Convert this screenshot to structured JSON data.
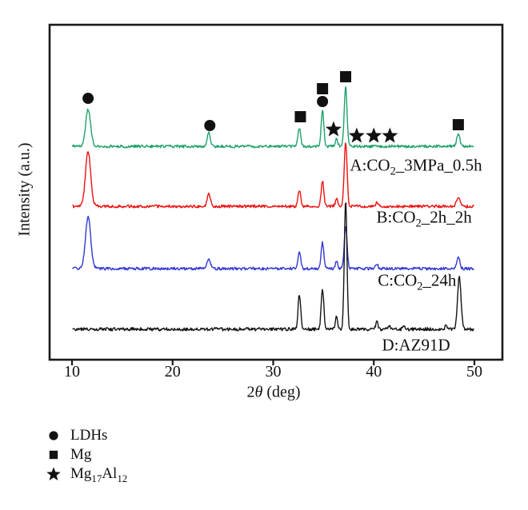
{
  "figure": {
    "background": "#ffffff",
    "axis_color": "#1a1a1a",
    "marker_color": "#111111"
  },
  "chart_data": {
    "type": "line",
    "title": "",
    "xlabel": "2θ (deg)",
    "xlabel_segments": [
      {
        "t": "2"
      },
      {
        "t": "θ",
        "italic": true
      },
      {
        "t": " (deg)"
      }
    ],
    "ylabel": "Intensity (a.u.)",
    "xlim": [
      10,
      50
    ],
    "x_ticks": [
      "10",
      "20",
      "30",
      "40",
      "50"
    ],
    "x_tick_values": [
      10,
      20,
      30,
      40,
      50
    ],
    "y_axis": "arbitrary units, no ticks",
    "grid": false,
    "legend_position": "below-left",
    "series": [
      {
        "id": "A",
        "name": "A:CO2_3MPa_0.5h",
        "label_segments": [
          {
            "t": "A:CO"
          },
          {
            "t": "2",
            "sub": true
          },
          {
            "t": "_3MPa_0.5h"
          }
        ],
        "color": "#1fa26c",
        "offset_frac": 0.363,
        "noise_frac": 0.0042,
        "seed": 3,
        "label_pos": {
          "x": 44.2,
          "y_frac": 0.42
        },
        "peaks": [
          {
            "x": 11.6,
            "h": 0.112,
            "w": 0.24
          },
          {
            "x": 23.6,
            "h": 0.043,
            "w": 0.15
          },
          {
            "x": 32.6,
            "h": 0.055,
            "w": 0.13
          },
          {
            "x": 34.9,
            "h": 0.107,
            "w": 0.13
          },
          {
            "x": 36.3,
            "h": 0.024,
            "w": 0.11
          },
          {
            "x": 37.2,
            "h": 0.179,
            "w": 0.14
          },
          {
            "x": 48.4,
            "h": 0.036,
            "w": 0.16
          }
        ]
      },
      {
        "id": "B",
        "name": "B:CO2_2h_2h",
        "label_segments": [
          {
            "t": "B:CO"
          },
          {
            "t": "2",
            "sub": true
          },
          {
            "t": "_2h_2h"
          }
        ],
        "color": "#ee1111",
        "offset_frac": 0.542,
        "noise_frac": 0.0042,
        "seed": 7,
        "label_pos": {
          "x": 45.0,
          "y_frac": 0.575
        },
        "peaks": [
          {
            "x": 11.6,
            "h": 0.163,
            "w": 0.26
          },
          {
            "x": 23.6,
            "h": 0.04,
            "w": 0.15
          },
          {
            "x": 32.6,
            "h": 0.048,
            "w": 0.13
          },
          {
            "x": 34.9,
            "h": 0.076,
            "w": 0.13
          },
          {
            "x": 36.3,
            "h": 0.026,
            "w": 0.11
          },
          {
            "x": 37.2,
            "h": 0.191,
            "w": 0.14
          },
          {
            "x": 40.3,
            "h": 0.01,
            "w": 0.12
          },
          {
            "x": 48.4,
            "h": 0.029,
            "w": 0.16
          }
        ]
      },
      {
        "id": "C",
        "name": "C:CO2_24h",
        "label_segments": [
          {
            "t": "C:CO"
          },
          {
            "t": "2",
            "sub": true
          },
          {
            "t": "_24h"
          }
        ],
        "color": "#3338d3",
        "offset_frac": 0.728,
        "noise_frac": 0.0042,
        "seed": 13,
        "label_pos": {
          "x": 44.3,
          "y_frac": 0.764
        },
        "peaks": [
          {
            "x": 11.6,
            "h": 0.153,
            "w": 0.26
          },
          {
            "x": 23.6,
            "h": 0.033,
            "w": 0.15
          },
          {
            "x": 32.6,
            "h": 0.053,
            "w": 0.13
          },
          {
            "x": 34.9,
            "h": 0.079,
            "w": 0.13
          },
          {
            "x": 36.3,
            "h": 0.024,
            "w": 0.11
          },
          {
            "x": 37.2,
            "h": 0.129,
            "w": 0.14
          },
          {
            "x": 40.3,
            "h": 0.014,
            "w": 0.12
          },
          {
            "x": 48.4,
            "h": 0.033,
            "w": 0.16
          }
        ]
      },
      {
        "id": "D",
        "name": "D:AZ91D",
        "label_segments": [
          {
            "t": "D:AZ91D"
          }
        ],
        "color": "#151515",
        "offset_frac": 0.909,
        "noise_frac": 0.005,
        "seed": 21,
        "label_pos": {
          "x": 44.2,
          "y_frac": 0.957
        },
        "peaks": [
          {
            "x": 32.6,
            "h": 0.105,
            "w": 0.13
          },
          {
            "x": 34.9,
            "h": 0.122,
            "w": 0.13
          },
          {
            "x": 36.3,
            "h": 0.038,
            "w": 0.11
          },
          {
            "x": 37.2,
            "h": 0.387,
            "w": 0.13
          },
          {
            "x": 40.3,
            "h": 0.021,
            "w": 0.12
          },
          {
            "x": 41.5,
            "h": 0.012,
            "w": 0.11
          },
          {
            "x": 43.0,
            "h": 0.01,
            "w": 0.11
          },
          {
            "x": 47.2,
            "h": 0.01,
            "w": 0.12
          },
          {
            "x": 48.5,
            "h": 0.155,
            "w": 0.17
          }
        ]
      }
    ],
    "markers": {
      "circle": {
        "meaning": "LDHs",
        "points": [
          {
            "x": 11.6,
            "y_frac": 0.2196
          },
          {
            "x": 23.7,
            "y_frac": 0.3007
          },
          {
            "x": 34.9,
            "y_frac": 0.2291
          }
        ]
      },
      "square": {
        "meaning": "Mg",
        "points": [
          {
            "x": 32.7,
            "y_frac": 0.2745
          },
          {
            "x": 34.9,
            "y_frac": 0.1909
          },
          {
            "x": 37.2,
            "y_frac": 0.1551
          },
          {
            "x": 48.4,
            "y_frac": 0.2983
          }
        ]
      },
      "star": {
        "meaning": "Mg17Al12",
        "points": [
          {
            "x": 36.0,
            "y_frac": 0.3126
          },
          {
            "x": 38.3,
            "y_frac": 0.3317
          },
          {
            "x": 40.0,
            "y_frac": 0.3317
          },
          {
            "x": 41.6,
            "y_frac": 0.3317
          }
        ]
      }
    }
  },
  "legend": {
    "items": [
      {
        "marker": "circle",
        "label": "LDHs",
        "label_segments": [
          {
            "t": "LDHs"
          }
        ]
      },
      {
        "marker": "square",
        "label": "Mg",
        "label_segments": [
          {
            "t": "Mg"
          }
        ]
      },
      {
        "marker": "star",
        "label": "Mg17Al12",
        "label_segments": [
          {
            "t": "Mg"
          },
          {
            "t": "17",
            "sub": true
          },
          {
            "t": "Al"
          },
          {
            "t": "12",
            "sub": true
          }
        ]
      }
    ]
  }
}
